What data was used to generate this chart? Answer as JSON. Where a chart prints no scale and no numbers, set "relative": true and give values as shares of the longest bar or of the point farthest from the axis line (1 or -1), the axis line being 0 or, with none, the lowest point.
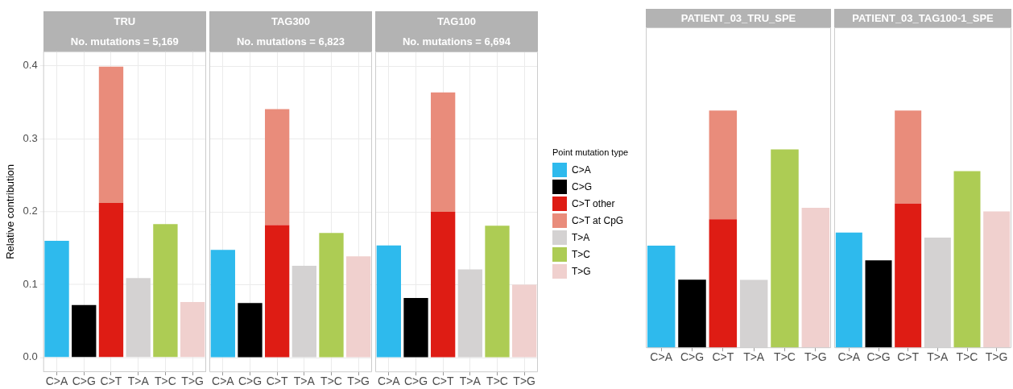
{
  "chart_data": [
    {
      "type": "bar",
      "title": "TRU",
      "subtitle": "No. mutations = 5,169",
      "ylabel": "Relative contribution",
      "categories": [
        "C>A",
        "C>G",
        "C>T",
        "T>A",
        "T>C",
        "T>G"
      ],
      "stacked": true,
      "grid": true,
      "ylim": [
        -0.02,
        0.42
      ],
      "yticks": [
        {
          "value": 0,
          "label": "0.0"
        },
        {
          "value": 0.1,
          "label": "0.1"
        },
        {
          "value": 0.2,
          "label": "0.2"
        },
        {
          "value": 0.3,
          "label": "0.3"
        },
        {
          "value": 0.4,
          "label": "0.4"
        }
      ],
      "series": [
        {
          "color": "#2ebaed",
          "values": [
            0.16,
            null,
            null,
            null,
            null,
            null
          ]
        },
        {
          "color": "#000000",
          "values": [
            null,
            0.072,
            null,
            null,
            null,
            null
          ]
        },
        {
          "color": "#de1c14",
          "values": [
            null,
            null,
            0.212,
            null,
            null,
            null
          ]
        },
        {
          "color": "#e98c7b",
          "values": [
            null,
            null,
            0.187,
            null,
            null,
            null
          ]
        },
        {
          "color": "#d4d2d2",
          "values": [
            null,
            null,
            null,
            0.109,
            null,
            null
          ]
        },
        {
          "color": "#adcc54",
          "values": [
            null,
            null,
            null,
            null,
            0.183,
            null
          ]
        },
        {
          "color": "#f0d0ce",
          "values": [
            null,
            null,
            null,
            null,
            null,
            0.076
          ]
        }
      ]
    },
    {
      "type": "bar",
      "title": "TAG300",
      "subtitle": "No. mutations = 6,823",
      "categories": [
        "C>A",
        "C>G",
        "C>T",
        "T>A",
        "T>C",
        "T>G"
      ],
      "stacked": true,
      "grid": true,
      "tick_labels": "x",
      "ylim": [
        -0.02,
        0.42
      ],
      "yticks": [
        0,
        0.1,
        0.2,
        0.3,
        0.4
      ],
      "series": [
        {
          "color": "#2ebaed",
          "values": [
            0.148,
            null,
            null,
            null,
            null,
            null
          ]
        },
        {
          "color": "#000000",
          "values": [
            null,
            0.075,
            null,
            null,
            null,
            null
          ]
        },
        {
          "color": "#de1c14",
          "values": [
            null,
            null,
            0.182,
            null,
            null,
            null
          ]
        },
        {
          "color": "#e98c7b",
          "values": [
            null,
            null,
            0.159,
            null,
            null,
            null
          ]
        },
        {
          "color": "#d4d2d2",
          "values": [
            null,
            null,
            null,
            0.126,
            null,
            null
          ]
        },
        {
          "color": "#adcc54",
          "values": [
            null,
            null,
            null,
            null,
            0.171,
            null
          ]
        },
        {
          "color": "#f0d0ce",
          "values": [
            null,
            null,
            null,
            null,
            null,
            0.139
          ]
        }
      ]
    },
    {
      "type": "bar",
      "title": "TAG100",
      "subtitle": "No. mutations = 6,694",
      "categories": [
        "C>A",
        "C>G",
        "C>T",
        "T>A",
        "T>C",
        "T>G"
      ],
      "stacked": true,
      "grid": true,
      "tick_labels": "x",
      "legend": "right",
      "legend_title": "Point mutation type",
      "ylim": [
        -0.02,
        0.42
      ],
      "yticks": [
        0,
        0.1,
        0.2,
        0.3,
        0.4
      ],
      "series": [
        {
          "name": "C>A",
          "color": "#2ebaed",
          "values": [
            0.154,
            null,
            null,
            null,
            null,
            null
          ]
        },
        {
          "name": "C>G",
          "color": "#000000",
          "values": [
            null,
            0.082,
            null,
            null,
            null,
            null
          ]
        },
        {
          "name": "C>T other",
          "color": "#de1c14",
          "values": [
            null,
            null,
            0.2,
            null,
            null,
            null
          ]
        },
        {
          "name": "C>T at CpG",
          "color": "#e98c7b",
          "values": [
            null,
            null,
            0.164,
            null,
            null,
            null
          ]
        },
        {
          "name": "T>A",
          "color": "#d4d2d2",
          "values": [
            null,
            null,
            null,
            0.121,
            null,
            null
          ]
        },
        {
          "name": "T>C",
          "color": "#adcc54",
          "values": [
            null,
            null,
            null,
            null,
            0.181,
            null
          ]
        },
        {
          "name": "T>G",
          "color": "#f0d0ce",
          "values": [
            null,
            null,
            null,
            null,
            null,
            0.1
          ]
        }
      ]
    },
    {
      "type": "bar",
      "title": "PATIENT_03_TRU_SPE",
      "categories": [
        "C>A",
        "C>G",
        "C>T",
        "T>A",
        "T>C",
        "T>G"
      ],
      "stacked": true,
      "relative": true,
      "series": [
        {
          "color": "#2ebaed",
          "values": [
            0.431,
            null,
            null,
            null,
            null,
            null
          ]
        },
        {
          "color": "#000000",
          "values": [
            null,
            0.288,
            null,
            null,
            null,
            null
          ]
        },
        {
          "color": "#de1c14",
          "values": [
            null,
            null,
            0.542,
            null,
            null,
            null
          ]
        },
        {
          "color": "#e98c7b",
          "values": [
            null,
            null,
            0.458,
            null,
            null,
            null
          ]
        },
        {
          "color": "#d4d2d2",
          "values": [
            null,
            null,
            null,
            0.287,
            null,
            null
          ]
        },
        {
          "color": "#adcc54",
          "values": [
            null,
            null,
            null,
            null,
            0.836,
            null
          ]
        },
        {
          "color": "#f0d0ce",
          "values": [
            null,
            null,
            null,
            null,
            null,
            0.591
          ]
        }
      ]
    },
    {
      "type": "bar",
      "title": "PATIENT_03_TAG100-1_SPE",
      "categories": [
        "C>A",
        "C>G",
        "C>T",
        "T>A",
        "T>C",
        "T>G"
      ],
      "stacked": true,
      "relative": true,
      "series": [
        {
          "color": "#2ebaed",
          "values": [
            0.486,
            null,
            null,
            null,
            null,
            null
          ]
        },
        {
          "color": "#000000",
          "values": [
            null,
            0.369,
            null,
            null,
            null,
            null
          ]
        },
        {
          "color": "#de1c14",
          "values": [
            null,
            null,
            0.608,
            null,
            null,
            null
          ]
        },
        {
          "color": "#e98c7b",
          "values": [
            null,
            null,
            0.392,
            null,
            null,
            null
          ]
        },
        {
          "color": "#d4d2d2",
          "values": [
            null,
            null,
            null,
            0.465,
            null,
            null
          ]
        },
        {
          "color": "#adcc54",
          "values": [
            null,
            null,
            null,
            null,
            0.745,
            null
          ]
        },
        {
          "color": "#f0d0ce",
          "values": [
            null,
            null,
            null,
            null,
            null,
            0.575
          ]
        }
      ]
    }
  ]
}
